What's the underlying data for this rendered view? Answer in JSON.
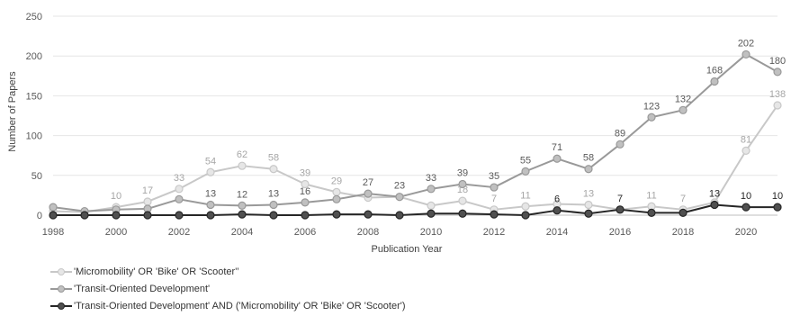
{
  "chart_data": {
    "type": "line",
    "xlabel": "Publication Year",
    "ylabel": "Number of Papers",
    "xlim": [
      1998,
      2021
    ],
    "ylim": [
      0,
      250
    ],
    "x_ticks": [
      1998,
      2000,
      2002,
      2004,
      2006,
      2008,
      2010,
      2012,
      2014,
      2016,
      2018,
      2020
    ],
    "y_ticks": [
      0,
      50,
      100,
      150,
      200,
      250
    ],
    "grid": "horizontal",
    "legend_position": "bottom",
    "x": [
      1998,
      1999,
      2000,
      2001,
      2002,
      2003,
      2004,
      2005,
      2006,
      2007,
      2008,
      2009,
      2010,
      2011,
      2012,
      2013,
      2014,
      2015,
      2016,
      2017,
      2018,
      2019,
      2020,
      2021
    ],
    "series": [
      {
        "name": "'Micromobility' OR 'Bike' OR 'Scooter'’",
        "color": "#c8c8c8",
        "label_color": "#a6a6a6",
        "values": [
          5,
          4,
          10,
          17,
          33,
          54,
          62,
          58,
          39,
          29,
          22,
          23,
          12,
          18,
          7,
          11,
          14,
          13,
          7,
          11,
          7,
          16,
          81,
          138
        ],
        "labels": [
          null,
          null,
          "10",
          "17",
          "33",
          "54",
          "62",
          "58",
          "39",
          "29",
          null,
          null,
          null,
          "18",
          "7",
          "11",
          null,
          "13",
          null,
          "11",
          "7",
          null,
          "81",
          "138"
        ]
      },
      {
        "name": "'Transit-Oriented Development'",
        "color": "#999999",
        "label_color": "#595959",
        "values": [
          10,
          5,
          7,
          8,
          20,
          13,
          12,
          13,
          16,
          20,
          27,
          23,
          33,
          39,
          35,
          55,
          71,
          58,
          89,
          123,
          132,
          168,
          202,
          180
        ],
        "labels": [
          null,
          null,
          null,
          null,
          null,
          "13",
          "12",
          "13",
          "16",
          null,
          "27",
          "23",
          "33",
          "39",
          "35",
          "55",
          "71",
          "58",
          "89",
          "123",
          "132",
          "168",
          "202",
          "180"
        ]
      },
      {
        "name": "'Transit-Oriented Development' AND ('Micromobility' OR 'Bike' OR 'Scooter')",
        "color": "#262626",
        "label_color": "#262626",
        "values": [
          0,
          0,
          0,
          0,
          0,
          0,
          1,
          0,
          0,
          1,
          1,
          0,
          2,
          2,
          1,
          0,
          6,
          2,
          7,
          3,
          3,
          13,
          10,
          10
        ],
        "labels": [
          null,
          null,
          null,
          null,
          null,
          null,
          null,
          null,
          null,
          null,
          null,
          null,
          null,
          null,
          null,
          null,
          "6",
          null,
          "7",
          null,
          null,
          "13",
          "10",
          "10"
        ]
      }
    ]
  }
}
